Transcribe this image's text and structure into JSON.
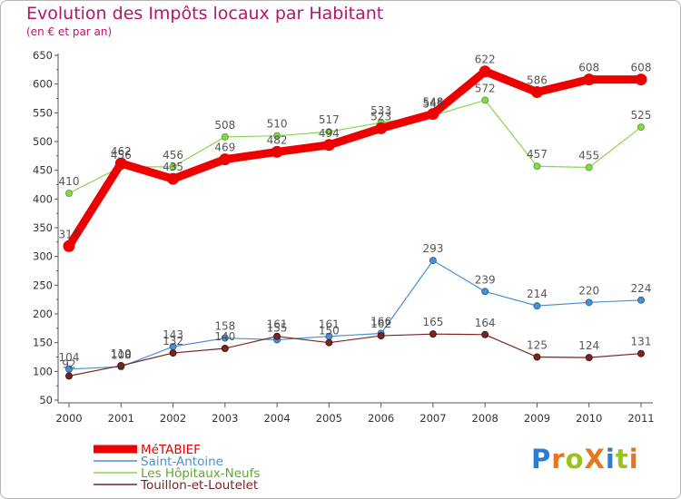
{
  "title": "Evolution des Impôts locaux par Habitant",
  "subtitle": "(en € et par an)",
  "logo": {
    "text": "ProXiti",
    "colors": [
      "#2e7bd6",
      "#e8741e",
      "#9bc31f",
      "#e8741e",
      "#2e7bd6",
      "#9bc31f",
      "#e8741e"
    ]
  },
  "chart_data": {
    "type": "line",
    "title": "Evolution des Impôts locaux par Habitant",
    "subtitle": "(en € et par an)",
    "x": [
      "2000",
      "2001",
      "2002",
      "2003",
      "2004",
      "2005",
      "2006",
      "2007",
      "2008",
      "2009",
      "2010",
      "2011"
    ],
    "ylim": [
      50,
      650
    ],
    "yticks": [
      50,
      100,
      150,
      200,
      250,
      300,
      350,
      400,
      450,
      500,
      550,
      600,
      650
    ],
    "grid": false,
    "legend": "bottom-left",
    "series": [
      {
        "name": "MéTABIEF",
        "color": "#ee0000",
        "width": 9,
        "marker": 6,
        "values": [
          318,
          462,
          435,
          469,
          482,
          494,
          523,
          548,
          622,
          586,
          608,
          608
        ],
        "labels": [
          "318",
          "462",
          "435",
          "469",
          "482",
          "494",
          "523",
          "548",
          "622",
          "586",
          "608",
          "608"
        ]
      },
      {
        "name": "Saint-Antoine",
        "color": "#4a90d2",
        "width": 1.2,
        "marker": 3.5,
        "values": [
          104,
          108,
          143,
          158,
          155,
          161,
          166,
          293,
          239,
          214,
          220,
          224
        ],
        "labels": [
          "104",
          "108",
          "143",
          "158",
          "155",
          "161",
          "166",
          "293",
          "239",
          "214",
          "220",
          "224"
        ]
      },
      {
        "name": "Les Hôpitaux-Neufs",
        "color": "#88d64e",
        "width": 1.2,
        "marker": 3.5,
        "values": [
          410,
          456,
          456,
          508,
          510,
          517,
          533,
          545,
          572,
          457,
          455,
          525
        ],
        "labels": [
          "410",
          "456",
          "456",
          "508",
          "510",
          "517",
          "533",
          "545",
          "572",
          "457",
          "455",
          "525"
        ]
      },
      {
        "name": "Touillon-et-Loutelet",
        "color": "#7a2323",
        "width": 1.2,
        "marker": 3.5,
        "values": [
          92,
          110,
          132,
          140,
          161,
          150,
          162,
          165,
          164,
          125,
          124,
          131
        ],
        "labels": [
          "92",
          "110",
          "132",
          "140",
          "161",
          "150",
          "162",
          "165",
          "164",
          "125",
          "124",
          "131"
        ]
      }
    ]
  }
}
